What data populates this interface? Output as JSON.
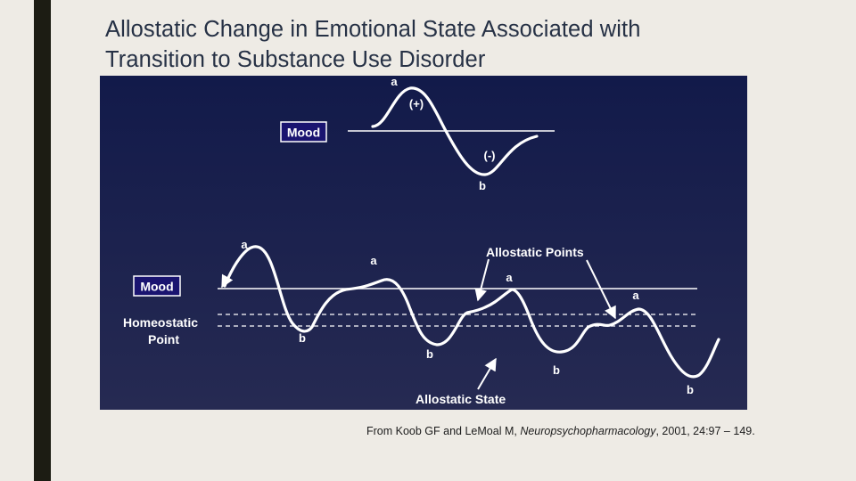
{
  "slide": {
    "title_line1": "Allostatic Change in Emotional State Associated with",
    "title_line2": "Transition to Substance Use Disorder"
  },
  "figure": {
    "background_color": "#1b1f4f",
    "top_panel": {
      "mood_label": "Mood",
      "label_a": "a",
      "label_b": "b",
      "positive_label": "(+)",
      "negative_label": "(-)"
    },
    "bottom_panel": {
      "mood_label": "Mood",
      "homeostatic_label_line1": "Homeostatic",
      "homeostatic_label_line2": "Point",
      "allostatic_points_label": "Allostatic Points",
      "allostatic_state_label": "Allostatic State",
      "peak_labels": [
        "a",
        "a",
        "a",
        "a"
      ],
      "trough_labels": [
        "b",
        "b",
        "b",
        "b"
      ]
    }
  },
  "citation": {
    "prefix": "From Koob GF and Le",
    "author2": "Moal M, ",
    "journal": "Neuropsychopharmacology",
    "suffix": ", 2001, 24:97 – 149."
  }
}
